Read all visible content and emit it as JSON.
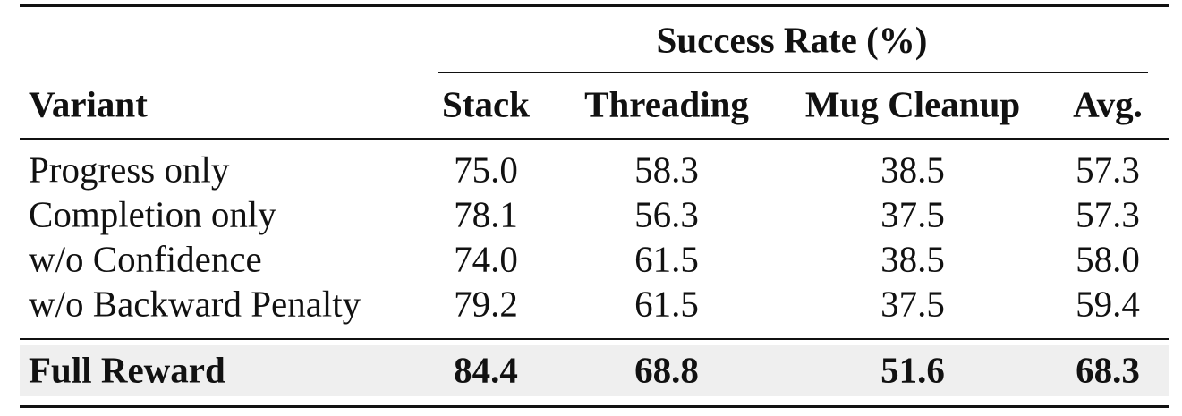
{
  "table": {
    "group_header": "Success Rate (%)",
    "columns": [
      "Variant",
      "Stack",
      "Threading",
      "Mug Cleanup",
      "Avg."
    ],
    "rows": [
      [
        "Progress only",
        "75.0",
        "58.3",
        "38.5",
        "57.3"
      ],
      [
        "Completion only",
        "78.1",
        "56.3",
        "37.5",
        "57.3"
      ],
      [
        "w/o Confidence",
        "74.0",
        "61.5",
        "38.5",
        "58.0"
      ],
      [
        "w/o Backward Penalty",
        "79.2",
        "61.5",
        "37.5",
        "59.4"
      ]
    ],
    "highlighted_row": [
      "Full Reward",
      "84.4",
      "68.8",
      "51.6",
      "68.3"
    ]
  }
}
